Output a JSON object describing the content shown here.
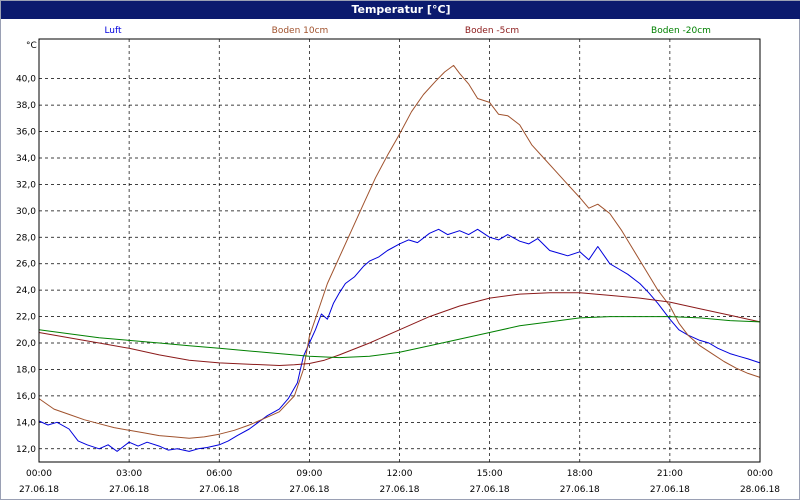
{
  "window": {
    "title": "Temperatur [°C]"
  },
  "chart_data": {
    "type": "line",
    "title": "Temperatur [°C]",
    "ylabel": "°C",
    "xlabel": "",
    "grid": true,
    "legend_position": "top",
    "xlim": [
      0,
      24
    ],
    "ylim": [
      11,
      43
    ],
    "y_ticks": [
      12,
      14,
      16,
      18,
      20,
      22,
      24,
      26,
      28,
      30,
      32,
      34,
      36,
      38,
      40
    ],
    "y_tick_labels": [
      "12,0",
      "14,0",
      "16,0",
      "18,0",
      "20,0",
      "22,0",
      "24,0",
      "26,0",
      "28,0",
      "30,0",
      "32,0",
      "34,0",
      "36,0",
      "38,0",
      "40,0"
    ],
    "x_ticks": [
      0,
      3,
      6,
      9,
      12,
      15,
      18,
      21,
      24
    ],
    "x_tick_times": [
      "00:00",
      "03:00",
      "06:00",
      "09:00",
      "12:00",
      "15:00",
      "18:00",
      "21:00",
      "00:00"
    ],
    "x_tick_dates": [
      "27.06.18",
      "27.06.18",
      "27.06.18",
      "27.06.18",
      "27.06.18",
      "27.06.18",
      "27.06.18",
      "27.06.18",
      "28.06.18"
    ],
    "series": [
      {
        "name": "Luft",
        "color": "#0000dd",
        "x": [
          0,
          0.3,
          0.6,
          1,
          1.3,
          1.6,
          2,
          2.3,
          2.6,
          3,
          3.3,
          3.6,
          4,
          4.3,
          4.6,
          5,
          5.3,
          5.6,
          6,
          6.3,
          6.6,
          7,
          7.3,
          7.6,
          8,
          8.3,
          8.6,
          8.8,
          9,
          9.2,
          9.4,
          9.6,
          9.8,
          10,
          10.2,
          10.5,
          10.8,
          11,
          11.3,
          11.6,
          12,
          12.3,
          12.6,
          13,
          13.3,
          13.6,
          14,
          14.3,
          14.6,
          15,
          15.3,
          15.6,
          16,
          16.3,
          16.6,
          17,
          17.3,
          17.6,
          18,
          18.3,
          18.6,
          19,
          19.3,
          19.6,
          20,
          20.3,
          20.6,
          21,
          21.3,
          21.6,
          22,
          22.3,
          22.6,
          23,
          23.3,
          23.6,
          24
        ],
        "y": [
          14.1,
          13.8,
          14,
          13.5,
          12.6,
          12.3,
          12,
          12.3,
          11.8,
          12.5,
          12.2,
          12.5,
          12.2,
          11.9,
          12,
          11.8,
          12,
          12.1,
          12.3,
          12.6,
          13,
          13.5,
          14,
          14.5,
          15,
          15.8,
          17,
          19,
          20,
          21,
          22.2,
          21.8,
          23,
          23.8,
          24.5,
          25,
          25.8,
          26.2,
          26.5,
          27,
          27.5,
          27.8,
          27.6,
          28.3,
          28.6,
          28.2,
          28.5,
          28.2,
          28.6,
          28,
          27.8,
          28.2,
          27.7,
          27.5,
          27.9,
          27,
          26.8,
          26.6,
          26.9,
          26.3,
          27.3,
          26,
          25.6,
          25.2,
          24.5,
          23.8,
          23,
          21.8,
          21,
          20.6,
          20.2,
          20,
          19.6,
          19.2,
          19,
          18.8,
          18.5
        ]
      },
      {
        "name": "Boden 10cm",
        "color": "#a0522d",
        "x": [
          0,
          0.5,
          1,
          1.5,
          2,
          2.5,
          3,
          3.5,
          4,
          4.5,
          5,
          5.5,
          6,
          6.5,
          7,
          7.5,
          8,
          8.5,
          8.8,
          9,
          9.3,
          9.6,
          10,
          10.4,
          10.8,
          11.2,
          11.6,
          12,
          12.4,
          12.8,
          13.2,
          13.5,
          13.8,
          14,
          14.3,
          14.6,
          15,
          15.3,
          15.6,
          16,
          16.4,
          16.8,
          17.2,
          17.6,
          18,
          18.3,
          18.6,
          19,
          19.4,
          19.8,
          20.2,
          20.6,
          21,
          21.3,
          21.6,
          22,
          22.4,
          22.8,
          23.2,
          23.6,
          24
        ],
        "y": [
          15.8,
          15,
          14.6,
          14.2,
          13.9,
          13.6,
          13.4,
          13.2,
          13,
          12.9,
          12.8,
          12.9,
          13.1,
          13.4,
          13.8,
          14.3,
          14.8,
          16,
          18,
          20.5,
          22.5,
          24.5,
          26.5,
          28.5,
          30.5,
          32.5,
          34.2,
          35.8,
          37.5,
          38.8,
          39.8,
          40.5,
          41,
          40.4,
          39.6,
          38.5,
          38.2,
          37.3,
          37.2,
          36.5,
          35,
          34,
          33,
          32,
          31,
          30.2,
          30.5,
          29.8,
          28.5,
          27,
          25.5,
          24,
          22.8,
          21.5,
          20.6,
          19.8,
          19.2,
          18.6,
          18.1,
          17.7,
          17.4
        ]
      },
      {
        "name": "Boden -5cm",
        "color": "#8b1a1a",
        "x": [
          0,
          1,
          2,
          3,
          4,
          5,
          6,
          7,
          8,
          8.5,
          9,
          9.5,
          10,
          11,
          12,
          13,
          14,
          15,
          16,
          17,
          18,
          19,
          20,
          21,
          22,
          23,
          24
        ],
        "y": [
          20.8,
          20.4,
          20,
          19.6,
          19.1,
          18.7,
          18.5,
          18.4,
          18.3,
          18.35,
          18.45,
          18.7,
          19.1,
          20,
          21,
          22,
          22.8,
          23.4,
          23.7,
          23.8,
          23.8,
          23.6,
          23.4,
          23.1,
          22.6,
          22.1,
          21.6
        ]
      },
      {
        "name": "Boden -20cm",
        "color": "#008000",
        "x": [
          0,
          1,
          2,
          3,
          4,
          5,
          6,
          7,
          8,
          9,
          10,
          11,
          12,
          13,
          14,
          15,
          16,
          17,
          18,
          19,
          20,
          21,
          22,
          23,
          24
        ],
        "y": [
          21,
          20.7,
          20.4,
          20.2,
          20,
          19.8,
          19.6,
          19.4,
          19.2,
          19,
          18.9,
          19,
          19.3,
          19.8,
          20.3,
          20.8,
          21.3,
          21.6,
          21.9,
          22,
          22,
          22,
          21.9,
          21.7,
          21.6
        ]
      }
    ]
  }
}
